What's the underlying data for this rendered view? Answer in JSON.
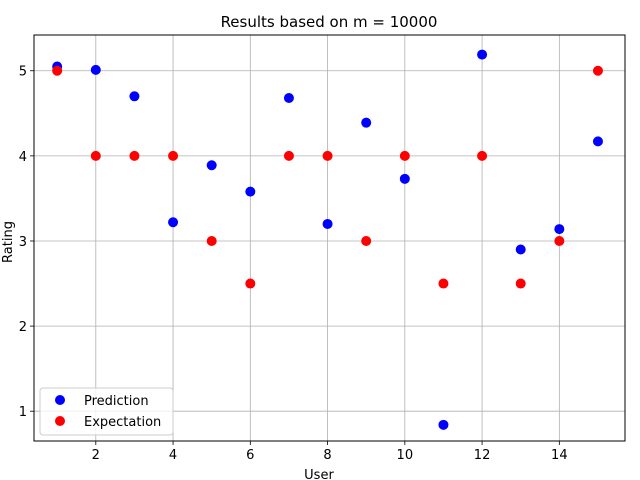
{
  "chart_data": {
    "type": "scatter",
    "title": "Results based on m = 10000",
    "xlabel": "User",
    "ylabel": "Rating",
    "xlim": [
      0.4,
      15.7
    ],
    "ylim": [
      0.65,
      5.42
    ],
    "xticks": [
      2,
      4,
      6,
      8,
      10,
      12,
      14
    ],
    "yticks": [
      1,
      2,
      3,
      4,
      5
    ],
    "grid": true,
    "legend_position": "lower-left",
    "series": [
      {
        "name": "Prediction",
        "color": "#0000ff",
        "x": [
          1,
          2,
          3,
          4,
          5,
          6,
          7,
          8,
          9,
          10,
          11,
          12,
          13,
          14,
          15
        ],
        "y": [
          5.05,
          5.01,
          4.7,
          3.22,
          3.89,
          3.58,
          4.68,
          3.2,
          4.39,
          3.73,
          0.84,
          5.19,
          2.9,
          3.14,
          4.17
        ]
      },
      {
        "name": "Expectation",
        "color": "#ff0000",
        "x": [
          1,
          2,
          3,
          4,
          5,
          6,
          7,
          8,
          9,
          10,
          11,
          12,
          13,
          14,
          15
        ],
        "y": [
          5.0,
          4.0,
          4.0,
          4.0,
          3.0,
          2.5,
          4.0,
          4.0,
          3.0,
          4.0,
          2.5,
          4.0,
          2.5,
          3.0,
          5.0
        ]
      }
    ]
  }
}
